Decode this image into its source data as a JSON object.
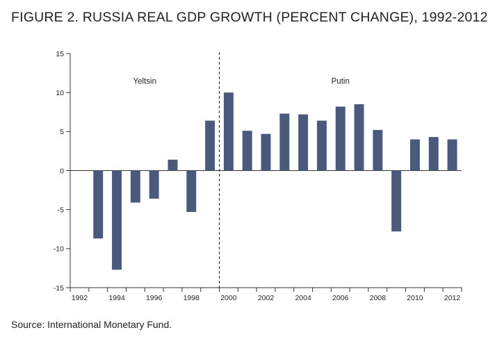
{
  "title": "FIGURE 2. RUSSIA REAL GDP GROWTH (PERCENT CHANGE), 1992-2012",
  "source": "Source: International Monetary Fund.",
  "colors": {
    "bar": "#4a5a7f",
    "axis": "#333333"
  },
  "chart_data": {
    "type": "bar",
    "xlabel": "",
    "ylabel": "",
    "ylim": [
      -15,
      15
    ],
    "yticks": [
      15,
      10,
      5,
      0,
      -5,
      -10,
      -15
    ],
    "ytick_labels": [
      "15",
      "10",
      "5",
      "0",
      "-5",
      "-10",
      "-15"
    ],
    "x": [
      1993,
      1994,
      1995,
      1996,
      1997,
      1998,
      1999,
      2000,
      2001,
      2002,
      2003,
      2004,
      2005,
      2006,
      2007,
      2008,
      2009,
      2010,
      2011,
      2012
    ],
    "values": [
      -8.7,
      -12.7,
      -4.1,
      -3.6,
      1.4,
      -5.3,
      6.4,
      10.0,
      5.1,
      4.7,
      7.3,
      7.2,
      6.4,
      8.2,
      8.5,
      5.2,
      -7.8,
      4.0,
      4.3,
      4.0
    ],
    "xrange": [
      1992,
      2012
    ],
    "xtick_labels": [
      "1992",
      "1994",
      "1996",
      "1998",
      "2000",
      "2002",
      "2004",
      "2006",
      "2008",
      "2010",
      "2012"
    ],
    "xtick_values": [
      1992,
      1994,
      1996,
      1998,
      2000,
      2002,
      2004,
      2006,
      2008,
      2010,
      2012
    ],
    "divider_x": 1999.5,
    "annotations": [
      {
        "text": "Yeltsin",
        "x": 1995.5,
        "y": 11.5
      },
      {
        "text": "Putin",
        "x": 2006.0,
        "y": 11.5
      }
    ],
    "grid": false
  }
}
